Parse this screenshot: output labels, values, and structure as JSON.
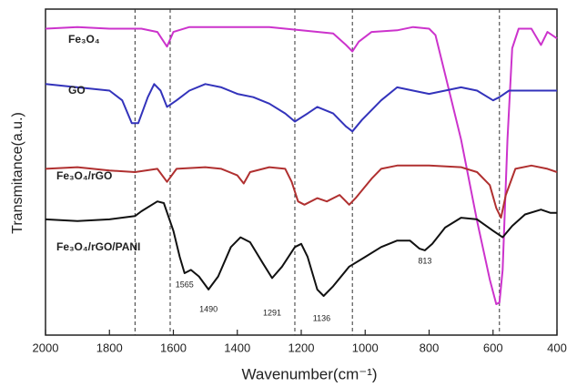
{
  "chart_data": {
    "type": "line",
    "x_label": "Wavenumber(cm⁻¹)",
    "y_label": "Transmitance(a.u.)",
    "xlim": [
      2000,
      400
    ],
    "xticks": [
      2000,
      1800,
      1600,
      1400,
      1200,
      1000,
      800,
      600,
      400
    ],
    "ylim": [
      0,
      100
    ],
    "reference_lines": [
      1720,
      1610,
      1220,
      1040,
      580
    ],
    "peak_labels": [
      1565,
      1490,
      1291,
      1136,
      813
    ],
    "series": [
      {
        "name": "Fe₃O₄",
        "color": "#cc33cc",
        "x": [
          2000,
          1900,
          1800,
          1700,
          1650,
          1620,
          1600,
          1550,
          1400,
          1300,
          1200,
          1100,
          1060,
          1040,
          1020,
          980,
          900,
          850,
          800,
          780,
          750,
          700,
          650,
          610,
          590,
          580,
          570,
          555,
          540,
          520,
          480,
          450,
          430,
          400
        ],
        "values": [
          94,
          94.5,
          94,
          94,
          93,
          88.5,
          93,
          94.5,
          94.5,
          94.5,
          93.5,
          92.5,
          89,
          87,
          90,
          93,
          93.5,
          94.5,
          94,
          92,
          80,
          60,
          35,
          17,
          9.5,
          10,
          20,
          60,
          88,
          94,
          94,
          89,
          93,
          91
        ]
      },
      {
        "name": "GO",
        "color": "#3333bb",
        "x": [
          2000,
          1900,
          1800,
          1760,
          1730,
          1710,
          1680,
          1660,
          1640,
          1620,
          1590,
          1550,
          1500,
          1450,
          1400,
          1350,
          1300,
          1250,
          1220,
          1180,
          1150,
          1100,
          1060,
          1040,
          1010,
          950,
          900,
          850,
          800,
          750,
          700,
          650,
          600,
          580,
          550,
          500,
          450,
          400
        ],
        "values": [
          77,
          76,
          75,
          72,
          65,
          65,
          73,
          77,
          75,
          70,
          72,
          75,
          77,
          76,
          74,
          73,
          71,
          68,
          65.5,
          68,
          70,
          68,
          64,
          62.5,
          66,
          72,
          76,
          75,
          74,
          75,
          76,
          75,
          72,
          73,
          75,
          75,
          75,
          75
        ]
      },
      {
        "name": "Fe₃O₄/rGO",
        "color": "#b03030",
        "x": [
          2000,
          1900,
          1800,
          1720,
          1650,
          1620,
          1590,
          1500,
          1450,
          1400,
          1380,
          1360,
          1300,
          1250,
          1230,
          1210,
          1190,
          1150,
          1120,
          1080,
          1050,
          1030,
          980,
          950,
          900,
          800,
          700,
          650,
          610,
          590,
          575,
          560,
          530,
          480,
          430,
          400
        ],
        "values": [
          51,
          51.5,
          50.5,
          50,
          51,
          47,
          51,
          51.5,
          51,
          49,
          46.5,
          50,
          51.5,
          51,
          47,
          41,
          40,
          42,
          41,
          43,
          40,
          42,
          48,
          51,
          52,
          52,
          51.5,
          50,
          46,
          39,
          36,
          43,
          51,
          52,
          51,
          50
        ]
      },
      {
        "name": "Fe₃O₄/rGO/PANI",
        "color": "#111111",
        "x": [
          2000,
          1900,
          1800,
          1720,
          1700,
          1650,
          1630,
          1600,
          1580,
          1565,
          1545,
          1520,
          1490,
          1460,
          1420,
          1390,
          1360,
          1320,
          1291,
          1260,
          1220,
          1200,
          1180,
          1150,
          1130,
          1100,
          1050,
          1000,
          950,
          900,
          860,
          830,
          813,
          790,
          750,
          700,
          650,
          600,
          570,
          540,
          500,
          450,
          420,
          400
        ],
        "values": [
          35.5,
          35,
          35.5,
          36.5,
          38,
          41,
          40.5,
          32,
          24,
          19,
          20,
          18,
          14,
          18,
          27,
          30,
          28.5,
          22,
          17.5,
          21,
          27,
          28,
          24,
          14,
          12,
          15,
          21,
          24,
          27,
          29,
          29,
          26.5,
          26,
          28,
          33,
          36,
          35.5,
          32,
          30,
          33.5,
          37,
          38.5,
          37.5,
          37.5
        ]
      }
    ]
  }
}
